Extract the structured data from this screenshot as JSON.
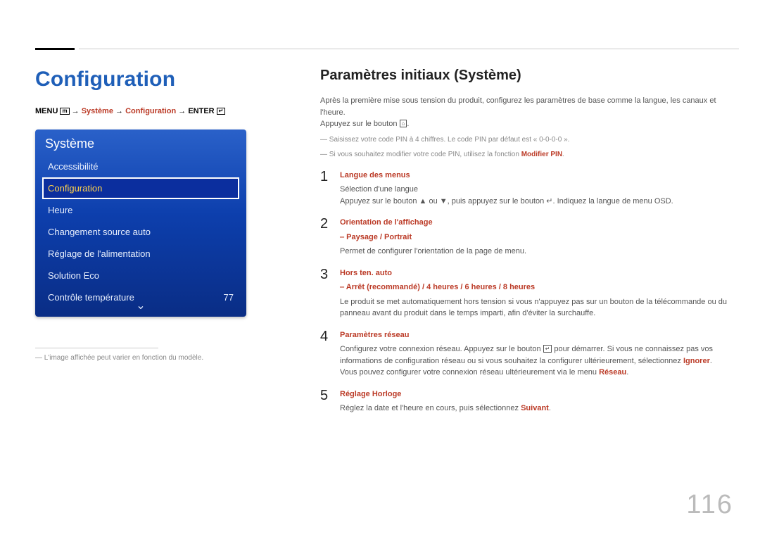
{
  "page_number": "116",
  "left": {
    "heading": "Configuration",
    "menupath": {
      "prefix": "MENU ",
      "menu_icon": "m",
      "arrow": " → ",
      "seg1": "Système",
      "seg2": "Configuration",
      "enter_label": "ENTER ",
      "enter_icon": "↵"
    },
    "osd": {
      "title": "Système",
      "items": [
        {
          "label": "Accessibilité",
          "value": "",
          "selected": false
        },
        {
          "label": "Configuration",
          "value": "",
          "selected": true
        },
        {
          "label": "Heure",
          "value": "",
          "selected": false
        },
        {
          "label": "Changement source auto",
          "value": "",
          "selected": false
        },
        {
          "label": "Réglage de l'alimentation",
          "value": "",
          "selected": false
        },
        {
          "label": "Solution Eco",
          "value": "",
          "selected": false
        },
        {
          "label": "Contrôle température",
          "value": "77",
          "selected": false
        }
      ],
      "chevron_down": "⌄"
    },
    "footnote": "― L'image affichée peut varier en fonction du modèle."
  },
  "right": {
    "heading": "Paramètres initiaux (Système)",
    "intro_line1": "Après la première mise sous tension du produit, configurez les paramètres de base comme la langue, les canaux et l'heure.",
    "intro_line2_pre": "Appuyez sur le bouton ",
    "intro_line2_icon": "⌂",
    "intro_line2_post": ".",
    "dash_notes": [
      {
        "text": "Saisissez votre code PIN à 4 chiffres. Le code PIN par défaut est « 0-0-0-0 »."
      },
      {
        "text_pre": "Si vous souhaitez modifier votre code PIN, utilisez la fonction ",
        "red": "Modifier PIN",
        "text_post": "."
      }
    ],
    "steps": [
      {
        "num": "1",
        "title": "Langue des menus",
        "body_lines": [
          "Sélection d'une langue",
          "Appuyez sur le bouton ▲ ou ▼, puis appuyez sur le bouton ↵. Indiquez la langue de menu OSD."
        ]
      },
      {
        "num": "2",
        "title": "Orientation de l'affichage",
        "sub_red": "‒  Paysage / Portrait",
        "body_lines": [
          "Permet de configurer l'orientation de la page de menu."
        ]
      },
      {
        "num": "3",
        "title": "Hors ten. auto",
        "sub_red": "‒  Arrêt (recommandé) / 4 heures / 6 heures / 8 heures",
        "body_lines": [
          "Le produit se met automatiquement hors tension si vous n'appuyez pas sur un bouton de la télécommande ou du panneau avant du produit dans le temps imparti, afin d'éviter la surchauffe."
        ]
      },
      {
        "num": "4",
        "title": "Paramètres réseau",
        "body_html": "Configurez votre connexion réseau. Appuyez sur le bouton <span class='box-icon'>↵</span> pour démarrer. Si vous ne connaissez pas vos informations de configuration réseau ou si vous souhaitez la configurer ultérieurement, sélectionnez <span class='inline-red'>Ignorer</span>. Vous pouvez configurer votre connexion réseau ultérieurement via le menu <span class='inline-red'>Réseau</span>."
      },
      {
        "num": "5",
        "title": "Réglage Horloge",
        "body_html": "Réglez la date et l'heure en cours, puis sélectionnez <span class='inline-red'>Suivant</span>."
      }
    ]
  },
  "colors": {
    "accent_blue": "#1f5fb8",
    "accent_red": "#bb3a26",
    "osd_grad_top": "#2a61c9",
    "osd_grad_bottom": "#0a2d85",
    "selected_text": "#ffd24a",
    "page_number": "#bbbbbb"
  }
}
